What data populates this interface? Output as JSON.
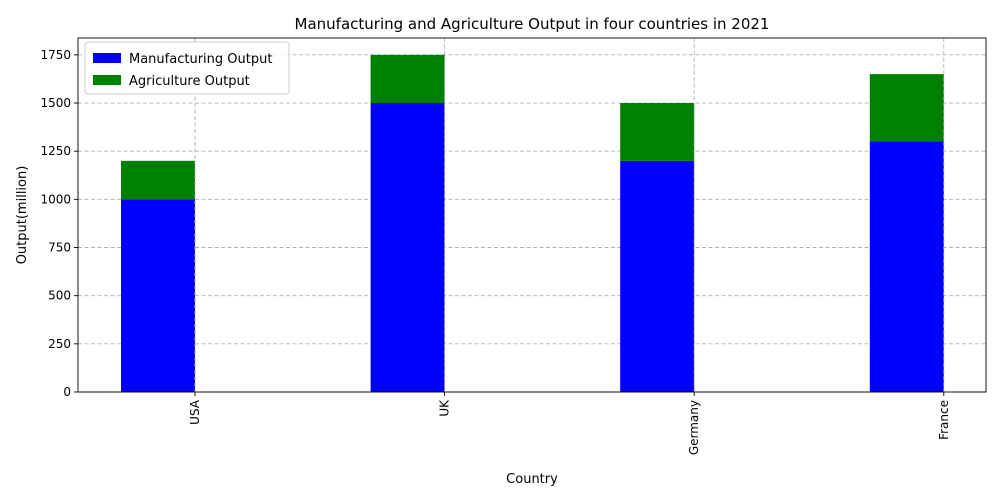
{
  "chart_data": {
    "type": "bar",
    "stacked": true,
    "title": "Manufacturing and Agriculture Output in four countries in 2021",
    "xlabel": "Country",
    "ylabel": "Output(million)",
    "categories": [
      "USA",
      "UK",
      "Germany",
      "France"
    ],
    "series": [
      {
        "name": "Manufacturing Output",
        "values": [
          1000,
          1500,
          1200,
          1300
        ],
        "color": "#0000ff"
      },
      {
        "name": "Agriculture Output",
        "values": [
          200,
          250,
          300,
          350
        ],
        "color": "#008000"
      }
    ],
    "ylim": [
      0,
      1837.5
    ],
    "yticks": [
      0,
      250,
      500,
      750,
      1000,
      1250,
      1500,
      1750
    ],
    "grid": true,
    "legend_position": "top-left"
  }
}
